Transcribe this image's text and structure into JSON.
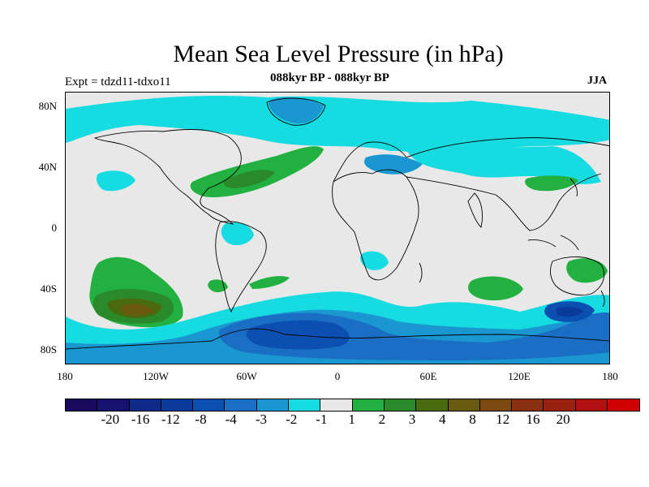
{
  "title": "Mean Sea Level Pressure (in hPa)",
  "expt": "Expt = tdzd11-tdxo11",
  "subtitle": "088kyr BP - 088kyr BP",
  "season": "JJA",
  "y_ticks": [
    "80N",
    "40N",
    "0",
    "40S",
    "80S"
  ],
  "x_ticks": [
    "180",
    "120W",
    "60W",
    "0",
    "60E",
    "120E",
    "180"
  ],
  "colorbar": {
    "colors": [
      "#1a0a5e",
      "#16126e",
      "#102a8a",
      "#0a3a9a",
      "#0b4fb0",
      "#1a6fc4",
      "#1a97d0",
      "#16dbe0",
      "#e8e8e8",
      "#22b040",
      "#2a8a2a",
      "#4a6a10",
      "#6a5a10",
      "#7a4a10",
      "#8a3010",
      "#9a2010",
      "#b01010",
      "#d00000"
    ],
    "labels": [
      "-20",
      "-16",
      "-12",
      "-8",
      "-4",
      "-3",
      "-2",
      "-1",
      "1",
      "2",
      "3",
      "4",
      "8",
      "12",
      "16",
      "20"
    ]
  },
  "map": {
    "background": "#e8e8e8",
    "field_colors": {
      "neg1": "#16dbe0",
      "neg2": "#1a97d0",
      "neg3": "#1a6fc4",
      "neg4": "#0b4fb0",
      "pos2": "#22b040",
      "pos3": "#2a8a2a",
      "pos4": "#4a6a10",
      "pos8": "#6a5a10"
    }
  }
}
